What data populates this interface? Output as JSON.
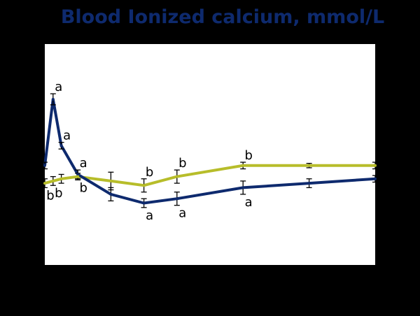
{
  "chart_data": {
    "type": "line",
    "title": "Blood Ionized calcium, mmol/L",
    "xlabel": "",
    "ylabel": "",
    "grid": false,
    "legend": "none",
    "x_axis_labels_visible": false,
    "y_axis_labels_visible": false,
    "x": [
      0,
      0.5,
      1,
      2,
      4,
      6,
      8,
      12,
      16,
      20
    ],
    "xlim": [
      0,
      20
    ],
    "ylim": [
      0,
      100
    ],
    "series": [
      {
        "color": "#0e2a6e",
        "values": [
          45,
          75,
          54,
          41,
          32,
          28,
          30,
          35,
          37,
          39
        ],
        "error": [
          1.5,
          2.5,
          1.5,
          2,
          3,
          2,
          3,
          3,
          2,
          1.5
        ],
        "letters": [
          "",
          "a",
          "a",
          "a",
          "",
          "a",
          "a",
          "a",
          "",
          ""
        ]
      },
      {
        "color": "#b7bd2a",
        "values": [
          37,
          38,
          39,
          40,
          38,
          36,
          40,
          45,
          45,
          45
        ],
        "error": [
          2,
          2,
          2,
          1.5,
          4,
          3,
          3,
          1.5,
          1,
          1.5
        ],
        "letters": [
          "b",
          "b",
          "",
          "b",
          "",
          "b",
          "b",
          "b",
          "",
          ""
        ]
      }
    ],
    "colors": {
      "title": "#0e2a6e",
      "plot_background": "#ffffff",
      "page_background": "#000000",
      "error_bars": "#000000"
    }
  }
}
